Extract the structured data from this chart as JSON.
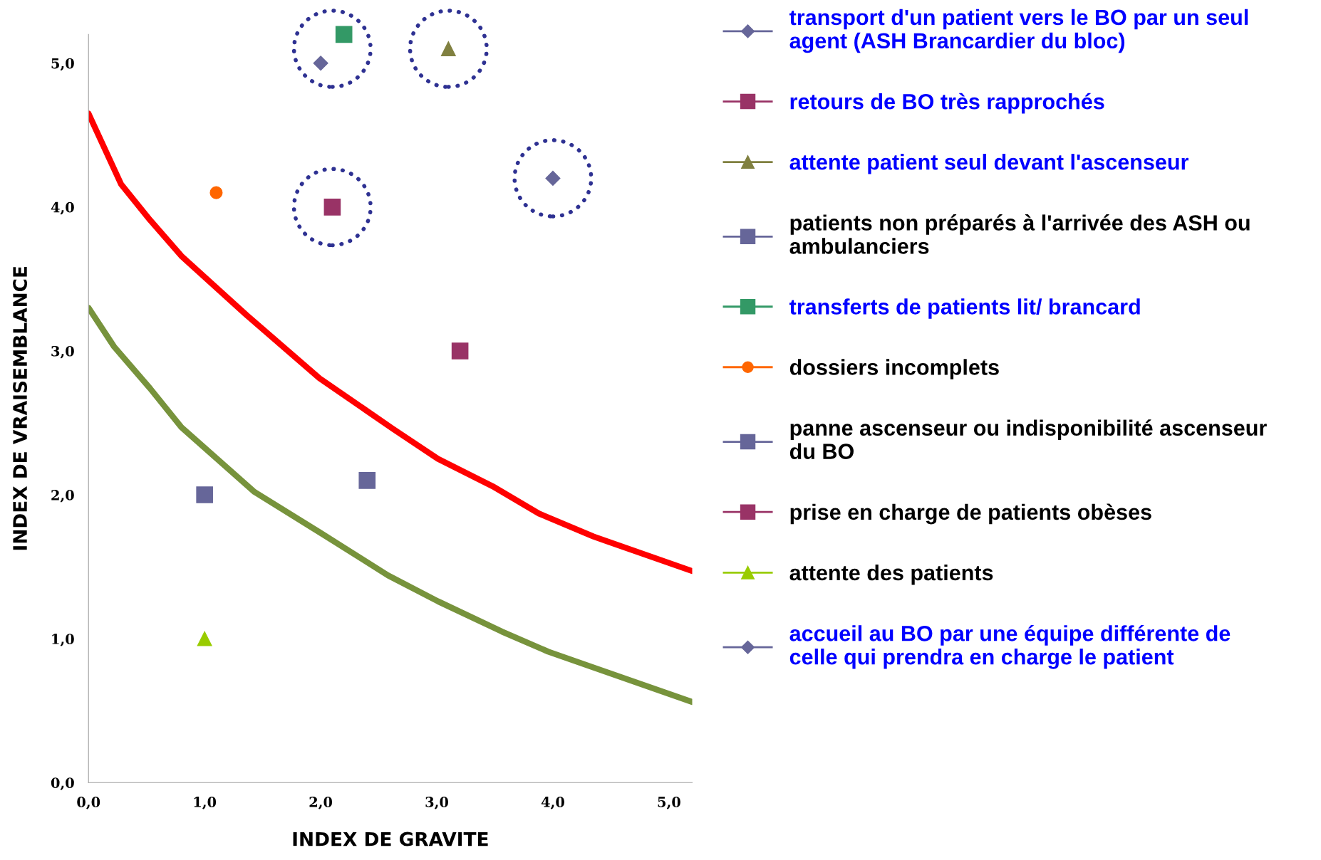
{
  "chart_data": {
    "type": "scatter",
    "xlabel": "INDEX DE GRAVITE",
    "ylabel": "INDEX DE VRAISEMBLANCE",
    "xlim": [
      0,
      5.2
    ],
    "ylim": [
      0,
      5.2
    ],
    "xticks": [
      {
        "value": 0,
        "label": "0,0"
      },
      {
        "value": 1,
        "label": "1,0"
      },
      {
        "value": 2,
        "label": "2,0"
      },
      {
        "value": 3,
        "label": "3,0"
      },
      {
        "value": 4,
        "label": "4,0"
      },
      {
        "value": 5,
        "label": "5,0"
      }
    ],
    "yticks": [
      {
        "value": 0,
        "label": "0,0"
      },
      {
        "value": 1,
        "label": "1,0"
      },
      {
        "value": 2,
        "label": "2,0"
      },
      {
        "value": 3,
        "label": "3,0"
      },
      {
        "value": 4,
        "label": "4,0"
      },
      {
        "value": 5,
        "label": "5,0"
      }
    ],
    "grid": false,
    "legend": "right",
    "series": [
      {
        "name": "transport d'un patient vers le BO par un seul agent (ASH Brancardier du bloc)",
        "color": "#666699",
        "marker": "diamond",
        "x": [
          2.0
        ],
        "values": [
          5.0
        ]
      },
      {
        "name": "retours de BO très rapprochés",
        "color": "#993366",
        "marker": "square",
        "x": [
          2.1
        ],
        "values": [
          4.0
        ]
      },
      {
        "name": "attente patient seul devant l'ascenseur",
        "color": "#808040",
        "marker": "triangle",
        "x": [
          3.1
        ],
        "values": [
          5.1
        ]
      },
      {
        "name": "patients non préparés à l'arrivée des ASH ou ambulanciers",
        "color": "#666699",
        "marker": "square",
        "x": [
          1.0
        ],
        "values": [
          2.0
        ]
      },
      {
        "name": "transferts de patients lit/ brancard",
        "color": "#339966",
        "marker": "square",
        "x": [
          2.2
        ],
        "values": [
          5.2
        ]
      },
      {
        "name": "dossiers incomplets",
        "color": "#ff6600",
        "marker": "circle",
        "x": [
          1.1
        ],
        "values": [
          4.1
        ]
      },
      {
        "name": "panne ascenseur ou indisponibilité ascenseur du BO",
        "color": "#666699",
        "marker": "square",
        "x": [
          2.4
        ],
        "values": [
          2.1
        ]
      },
      {
        "name": "prise en charge de patients obèses",
        "color": "#993366",
        "marker": "square",
        "x": [
          3.2
        ],
        "values": [
          3.0
        ]
      },
      {
        "name": "attente des patients",
        "color": "#99cc00",
        "marker": "triangle",
        "x": [
          1.0
        ],
        "values": [
          1.0
        ]
      },
      {
        "name": "accueil au BO par une équipe différente de celle qui prendra en charge le patient",
        "color": "#666699",
        "marker": "diamond",
        "x": [
          4.0
        ],
        "values": [
          4.2
        ]
      },
      {
        "type": "line",
        "color": "#ff0000",
        "marker": "none",
        "x": [
          0,
          0.28,
          0.53,
          0.8,
          1.36,
          1.99,
          2.62,
          3.01,
          3.48,
          3.88,
          4.35,
          5.2
        ],
        "values": [
          4.65,
          4.16,
          3.91,
          3.66,
          3.25,
          2.81,
          2.46,
          2.25,
          2.06,
          1.87,
          1.71,
          1.47
        ]
      },
      {
        "type": "line",
        "color": "#77933c",
        "marker": "none",
        "x": [
          0,
          0.22,
          0.53,
          0.8,
          1.43,
          1.99,
          2.58,
          3.01,
          3.56,
          3.96,
          4.35,
          5.2
        ],
        "values": [
          3.3,
          3.03,
          2.74,
          2.47,
          2.02,
          1.74,
          1.44,
          1.26,
          1.05,
          0.91,
          0.8,
          0.56
        ]
      }
    ]
  }
}
